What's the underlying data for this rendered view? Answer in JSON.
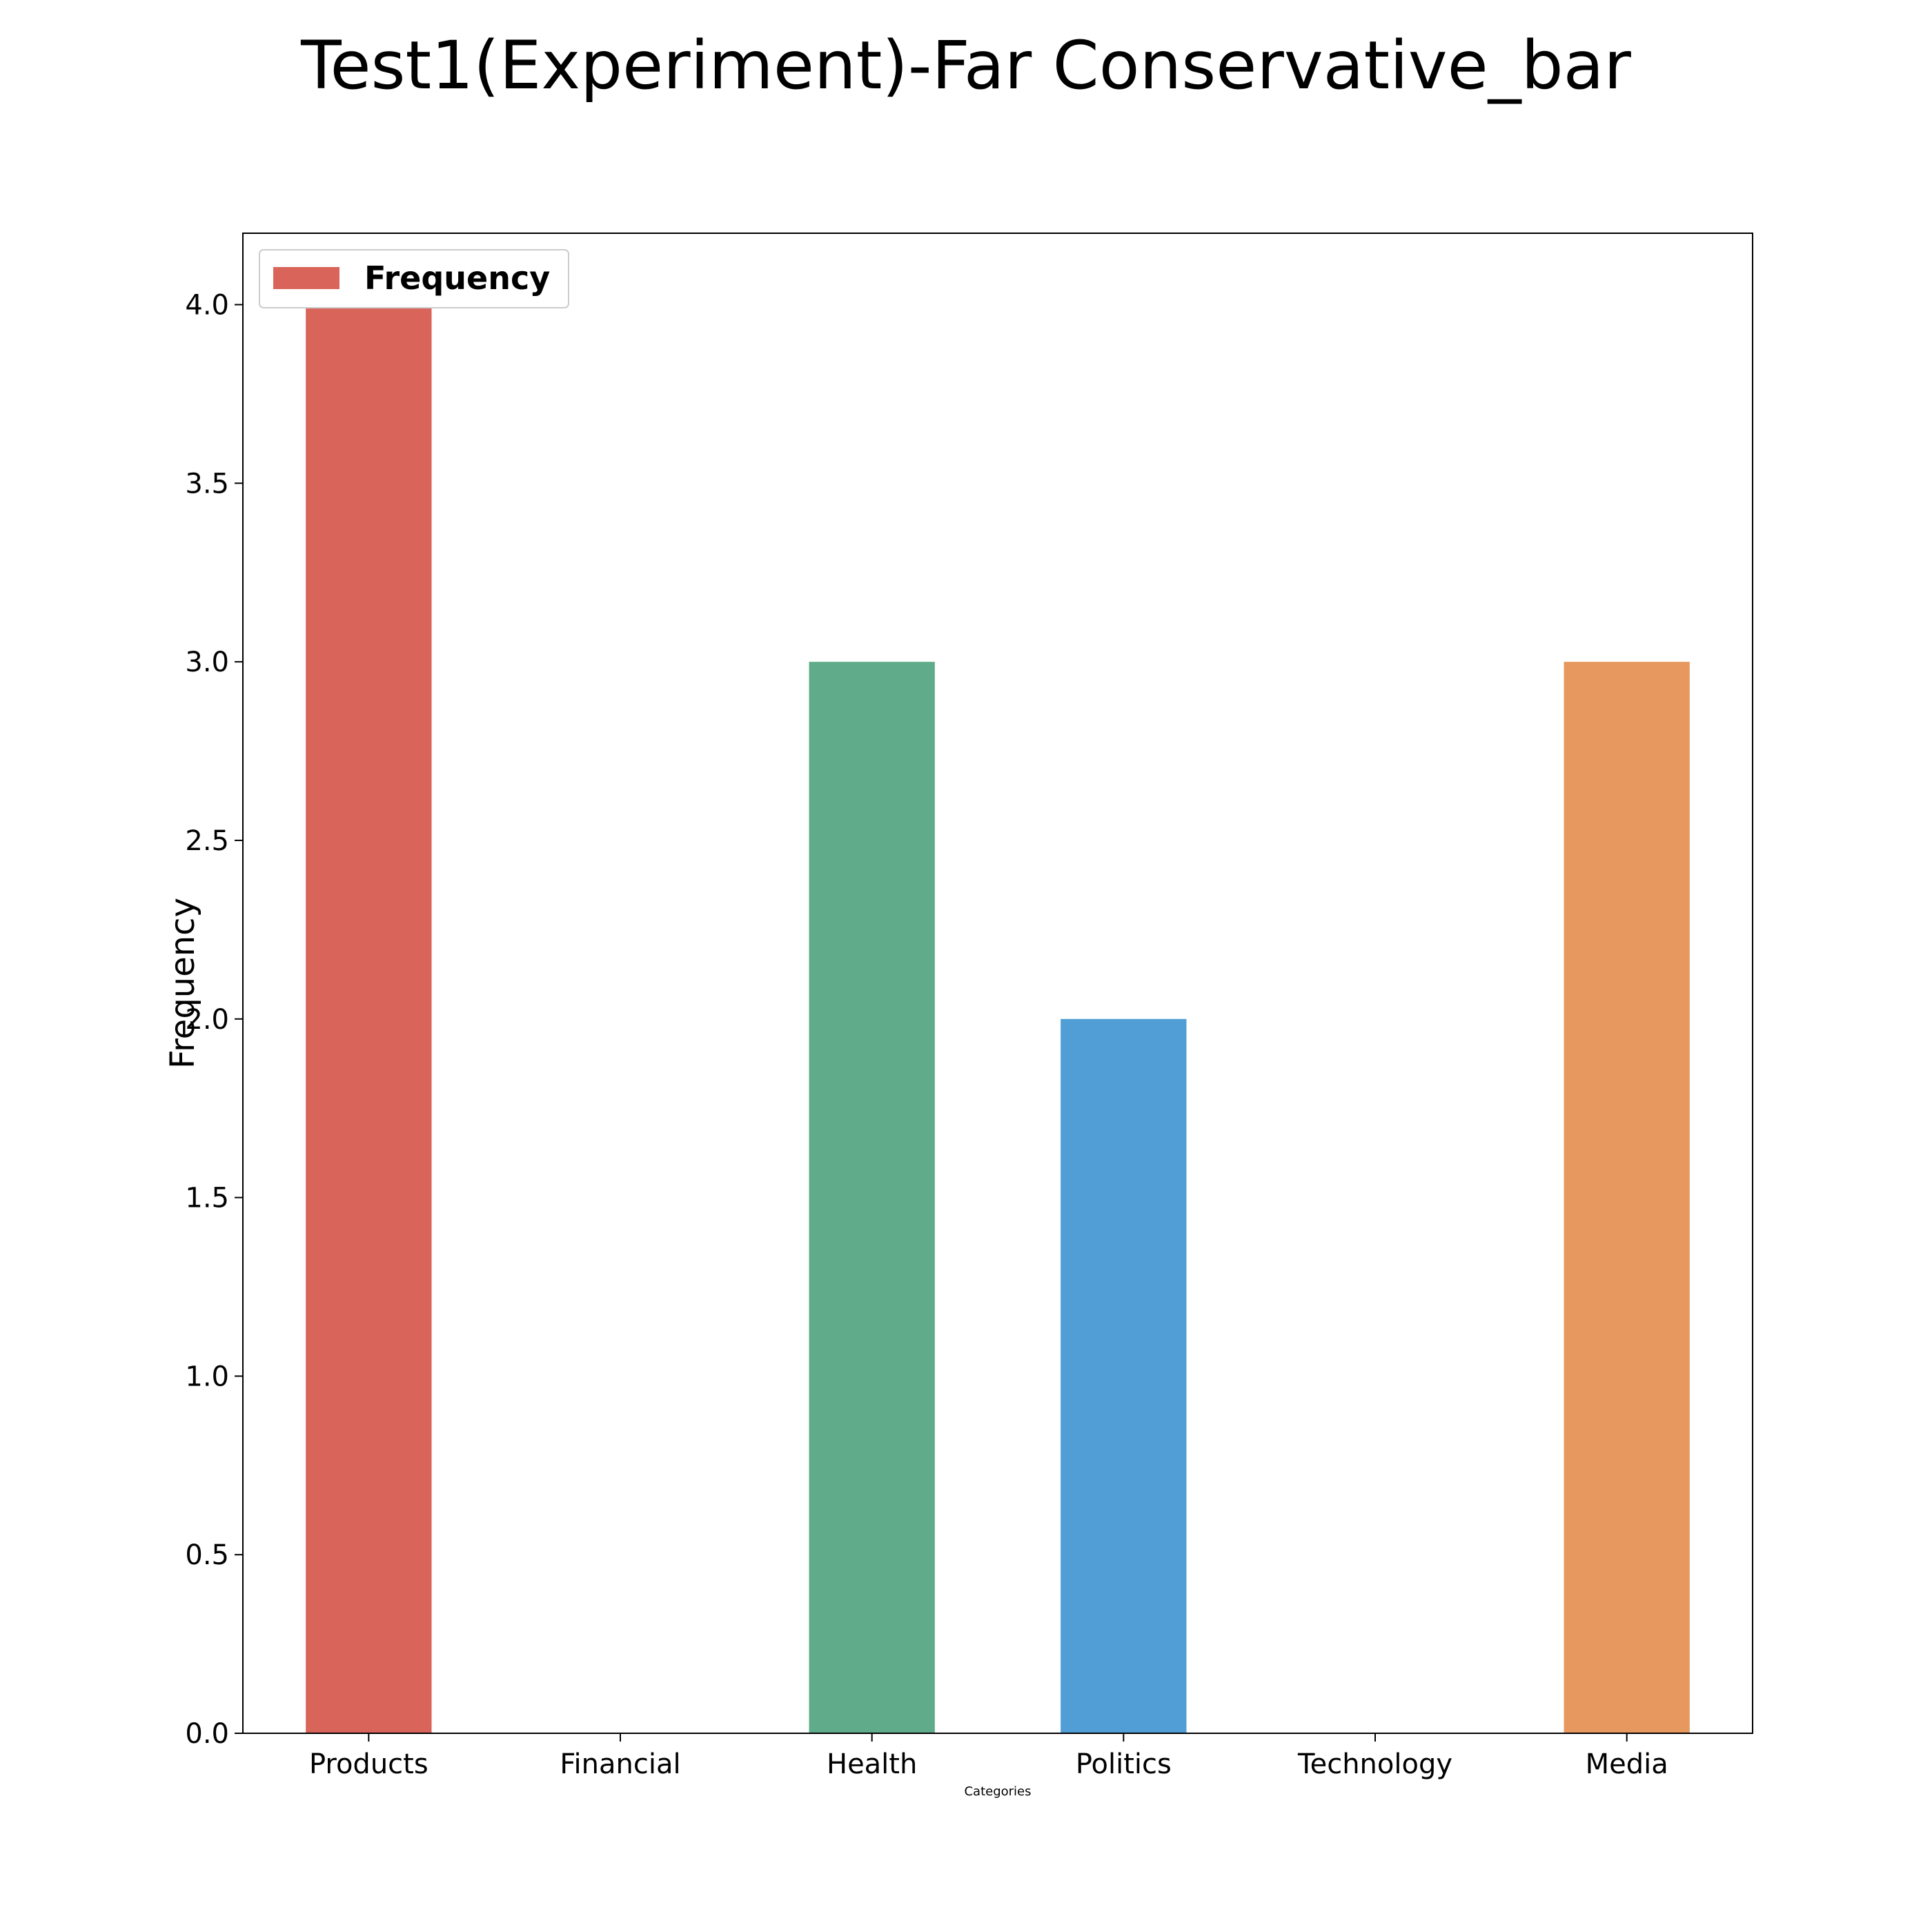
{
  "chart_data": {
    "type": "bar",
    "title": "Test1(Experiment)-Far Conservative_bar",
    "xlabel": "Categories",
    "ylabel": "Frequency",
    "categories": [
      "Products",
      "Financial",
      "Health",
      "Politics",
      "Technology",
      "Media"
    ],
    "values": [
      4,
      0,
      3,
      2,
      0,
      3
    ],
    "bar_colors": [
      "#d9645a",
      "#d9645a",
      "#60ac8a",
      "#519ed6",
      "#d9645a",
      "#e6985e"
    ],
    "ylim": [
      0,
      4.2
    ],
    "yticks": [
      "0.0",
      "0.5",
      "1.0",
      "1.5",
      "2.0",
      "2.5",
      "3.0",
      "3.5",
      "4.0"
    ],
    "grid": false,
    "legend": {
      "label": "Frequency",
      "color": "#d9645a",
      "placement": "top-left"
    }
  }
}
